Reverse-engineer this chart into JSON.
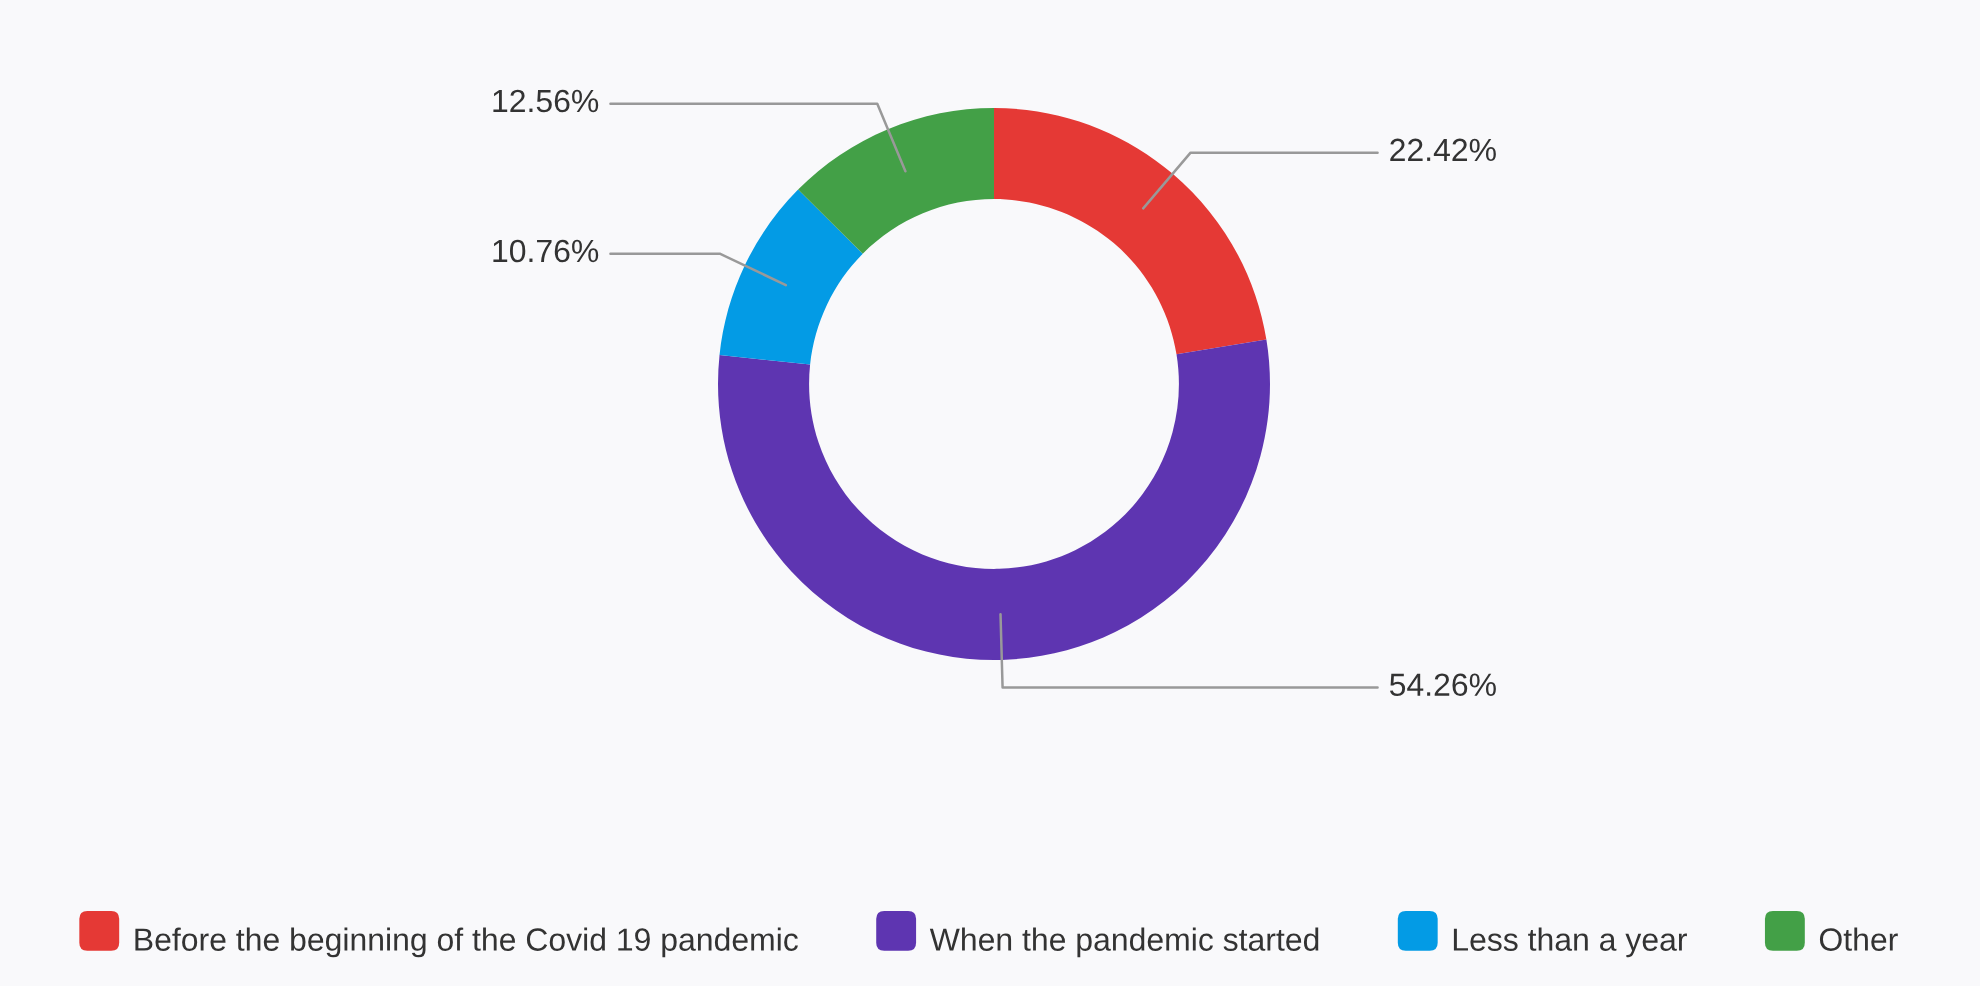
{
  "chart_data": {
    "type": "donut",
    "categories": [
      "Before the beginning of the Covid 19 pandemic",
      "When the pandemic started",
      "Less than a year",
      "Other"
    ],
    "values": [
      22.42,
      54.26,
      10.76,
      12.56
    ],
    "colors": [
      "#e53935",
      "#5e35b1",
      "#039be5",
      "#43a047"
    ],
    "value_labels": [
      "22.42%",
      "54.26%",
      "10.76%",
      "12.56%"
    ],
    "legend": "bottom"
  }
}
